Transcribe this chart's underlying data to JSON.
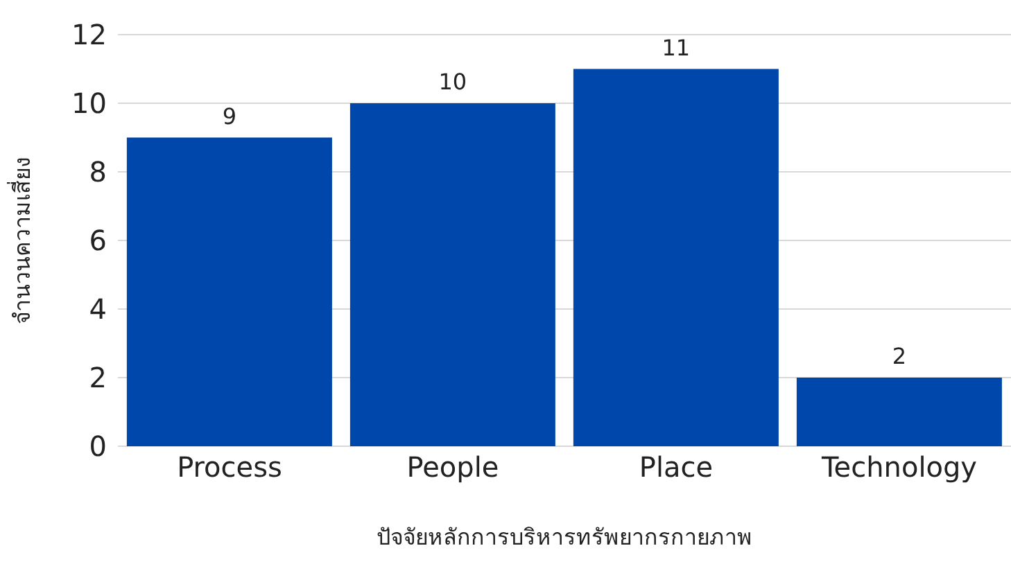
{
  "chart_data": {
    "type": "bar",
    "xlabel": "ปัจจัยหลักการบริหารทรัพยากรกายภาพ",
    "ylabel": "จำนวนความเสี่ยง",
    "categories": [
      "Process",
      "People",
      "Place",
      "Technology"
    ],
    "values": [
      9,
      10,
      11,
      2
    ],
    "color": "#0047ab",
    "ylim": [
      0,
      12
    ],
    "yticks": [
      0,
      2,
      4,
      6,
      8,
      10,
      12
    ],
    "grid": "y",
    "data_labels": true
  }
}
